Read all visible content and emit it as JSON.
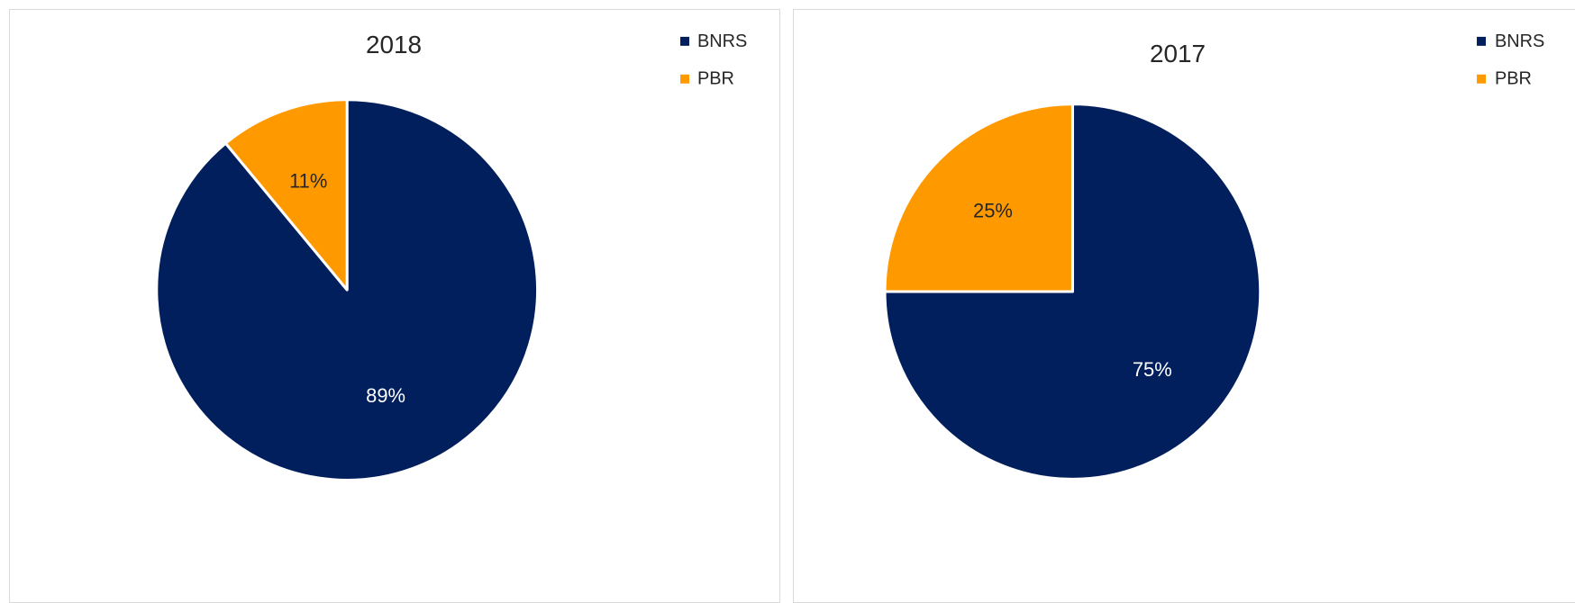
{
  "chart_data": [
    {
      "type": "pie",
      "title": "2018",
      "categories": [
        "BNRS",
        "PBR"
      ],
      "values": [
        89,
        11
      ],
      "data_labels": [
        "89%",
        "11%"
      ],
      "colors": [
        "#001f5c",
        "#ff9900"
      ],
      "label_colors": [
        "#ffffff",
        "#262626"
      ],
      "legend": {
        "placement": "top-right",
        "entries": [
          "BNRS",
          "PBR"
        ]
      }
    },
    {
      "type": "pie",
      "title": "2017",
      "categories": [
        "BNRS",
        "PBR"
      ],
      "values": [
        75,
        25
      ],
      "data_labels": [
        "75%",
        "25%"
      ],
      "colors": [
        "#001f5c",
        "#ff9900"
      ],
      "label_colors": [
        "#ffffff",
        "#262626"
      ],
      "legend": {
        "placement": "top-right",
        "entries": [
          "BNRS",
          "PBR"
        ]
      }
    }
  ]
}
